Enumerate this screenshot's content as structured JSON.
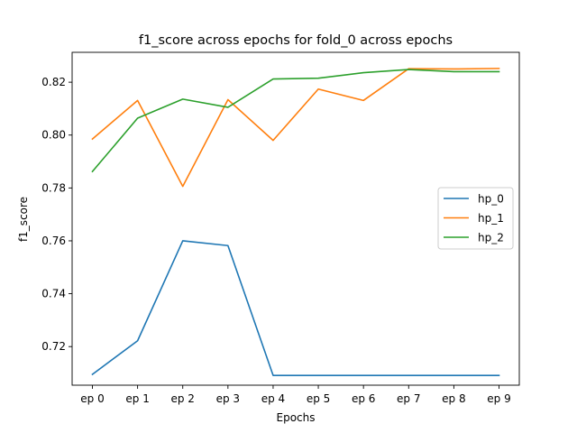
{
  "chart_data": {
    "type": "line",
    "title": "f1_score across epochs for fold_0 across epochs",
    "xlabel": "Epochs",
    "ylabel": "f1_score",
    "categories": [
      "ep 0",
      "ep 1",
      "ep 2",
      "ep 3",
      "ep 4",
      "ep 5",
      "ep 6",
      "ep 7",
      "ep 8",
      "ep 9"
    ],
    "ylim": [
      0.7054,
      0.8313
    ],
    "yticks": [
      0.72,
      0.74,
      0.76,
      0.78,
      0.8,
      0.82
    ],
    "ytick_labels": [
      "0.72",
      "0.74",
      "0.76",
      "0.78",
      "0.80",
      "0.82"
    ],
    "grid": false,
    "legend_position": "center-right",
    "series": [
      {
        "name": "hp_0",
        "color": "#1f77b4",
        "values": [
          0.7095,
          0.7222,
          0.76,
          0.7582,
          0.7091,
          0.7091,
          0.7091,
          0.7091,
          0.7091,
          0.7091
        ]
      },
      {
        "name": "hp_1",
        "color": "#ff7f0e",
        "values": [
          0.7985,
          0.8131,
          0.7806,
          0.8134,
          0.798,
          0.8174,
          0.8131,
          0.8251,
          0.825,
          0.8252
        ]
      },
      {
        "name": "hp_2",
        "color": "#2ca02c",
        "values": [
          0.7862,
          0.8064,
          0.8136,
          0.8105,
          0.8212,
          0.8215,
          0.8236,
          0.8248,
          0.824,
          0.824
        ]
      }
    ]
  }
}
